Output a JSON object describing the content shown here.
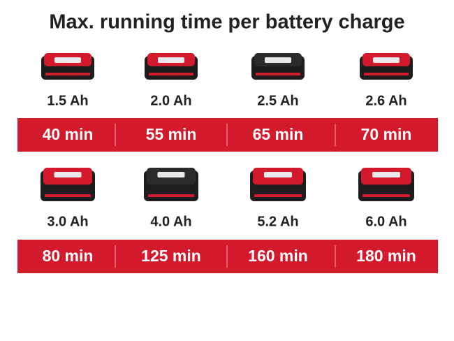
{
  "title": "Max. running time per battery charge",
  "batteries": [
    {
      "capacity": "1.5 Ah",
      "runtime": "40 min"
    },
    {
      "capacity": "2.0 Ah",
      "runtime": "55 min"
    },
    {
      "capacity": "2.5 Ah",
      "runtime": "65 min"
    },
    {
      "capacity": "2.6 Ah",
      "runtime": "70 min"
    },
    {
      "capacity": "3.0 Ah",
      "runtime": "80 min"
    },
    {
      "capacity": "4.0 Ah",
      "runtime": "125 min"
    },
    {
      "capacity": "5.2 Ah",
      "runtime": "160 min"
    },
    {
      "capacity": "6.0 Ah",
      "runtime": "180 min"
    }
  ]
}
